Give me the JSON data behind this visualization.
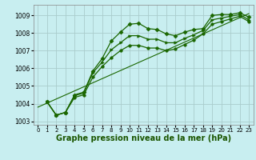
{
  "background_color": "#c8eef0",
  "grid_color": "#aacccc",
  "line_color": "#1a6600",
  "marker_color": "#1a6600",
  "xlabel": "Graphe pression niveau de la mer (hPa)",
  "xlabel_fontsize": 7,
  "ylim": [
    1002.8,
    1009.6
  ],
  "xlim": [
    -0.5,
    23.5
  ],
  "yticks": [
    1003,
    1004,
    1005,
    1006,
    1007,
    1008,
    1009
  ],
  "xticks": [
    0,
    1,
    2,
    3,
    4,
    5,
    6,
    7,
    8,
    9,
    10,
    11,
    12,
    13,
    14,
    15,
    16,
    17,
    18,
    19,
    20,
    21,
    22,
    23
  ],
  "series": [
    [
      1004.1,
      1003.35,
      1003.5,
      1004.5,
      1004.65,
      1005.85,
      1006.55,
      1007.55,
      1008.05,
      1008.5,
      1008.55,
      1008.25,
      1008.2,
      1007.95,
      1007.85,
      1008.05,
      1008.2,
      1008.25,
      1009.0,
      1009.05,
      1009.05,
      1009.15,
      1008.9
    ],
    [
      1004.1,
      1003.35,
      1003.5,
      1004.45,
      1004.6,
      1005.75,
      1006.35,
      1007.05,
      1007.45,
      1007.85,
      1007.85,
      1007.65,
      1007.65,
      1007.45,
      1007.45,
      1007.7,
      1007.9,
      1008.15,
      1008.75,
      1008.85,
      1008.95,
      1009.05,
      1008.75
    ],
    [
      1004.1,
      1003.35,
      1003.5,
      1004.35,
      1004.5,
      1005.5,
      1006.1,
      1006.6,
      1007.0,
      1007.3,
      1007.3,
      1007.15,
      1007.15,
      1007.0,
      1007.1,
      1007.35,
      1007.6,
      1007.95,
      1008.5,
      1008.65,
      1008.8,
      1008.95,
      1008.65
    ]
  ]
}
